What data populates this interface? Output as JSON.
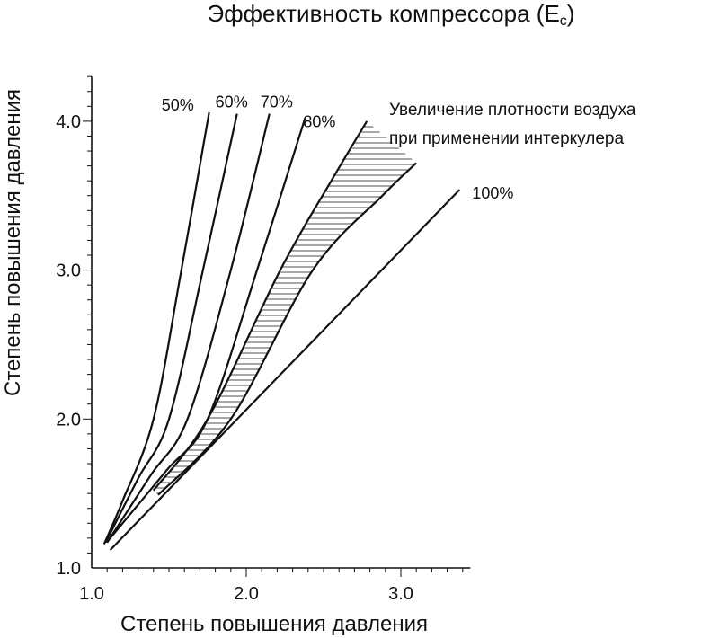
{
  "chart_data": {
    "type": "line",
    "title": "Эффективность компрессора (E",
    "title_subscript": "c",
    "title_close": ")",
    "xlabel": "Степень повышения давления",
    "ylabel": "Степень повышения давления",
    "xlim": [
      1.0,
      3.45
    ],
    "ylim": [
      1.0,
      4.3
    ],
    "x_ticks": [
      "1.0",
      "2.0",
      "3.0"
    ],
    "y_ticks": [
      "1.0",
      "2.0",
      "3.0",
      "4.0"
    ],
    "grid": false,
    "series": [
      {
        "name": "50%",
        "points": [
          [
            1.08,
            1.16
          ],
          [
            1.2,
            1.45
          ],
          [
            1.4,
            2.0
          ],
          [
            1.58,
            3.0
          ],
          [
            1.76,
            4.06
          ]
        ]
      },
      {
        "name": "60%",
        "points": [
          [
            1.09,
            1.17
          ],
          [
            1.3,
            1.6
          ],
          [
            1.5,
            2.0
          ],
          [
            1.72,
            3.0
          ],
          [
            1.94,
            4.05
          ]
        ]
      },
      {
        "name": "70%",
        "points": [
          [
            1.1,
            1.17
          ],
          [
            1.38,
            1.62
          ],
          [
            1.62,
            2.0
          ],
          [
            1.9,
            3.0
          ],
          [
            2.15,
            4.05
          ]
        ]
      },
      {
        "name": "80%",
        "points": [
          [
            1.12,
            1.2
          ],
          [
            1.48,
            1.65
          ],
          [
            1.75,
            2.0
          ],
          [
            2.07,
            3.0
          ],
          [
            2.38,
            4.02
          ]
        ]
      },
      {
        "name": "100%",
        "points": [
          [
            1.12,
            1.12
          ],
          [
            3.38,
            3.54
          ]
        ]
      }
    ],
    "band": {
      "label_lines": [
        "Увеличение плотности воздуха",
        "при применении интеркулера"
      ],
      "upper": [
        [
          1.4,
          1.52
        ],
        [
          1.75,
          2.0
        ],
        [
          2.22,
          3.0
        ],
        [
          2.55,
          3.6
        ],
        [
          2.78,
          4.0
        ]
      ],
      "lower": [
        [
          1.43,
          1.49
        ],
        [
          1.9,
          2.0
        ],
        [
          2.43,
          3.0
        ],
        [
          2.88,
          3.5
        ],
        [
          3.1,
          3.72
        ]
      ]
    }
  }
}
